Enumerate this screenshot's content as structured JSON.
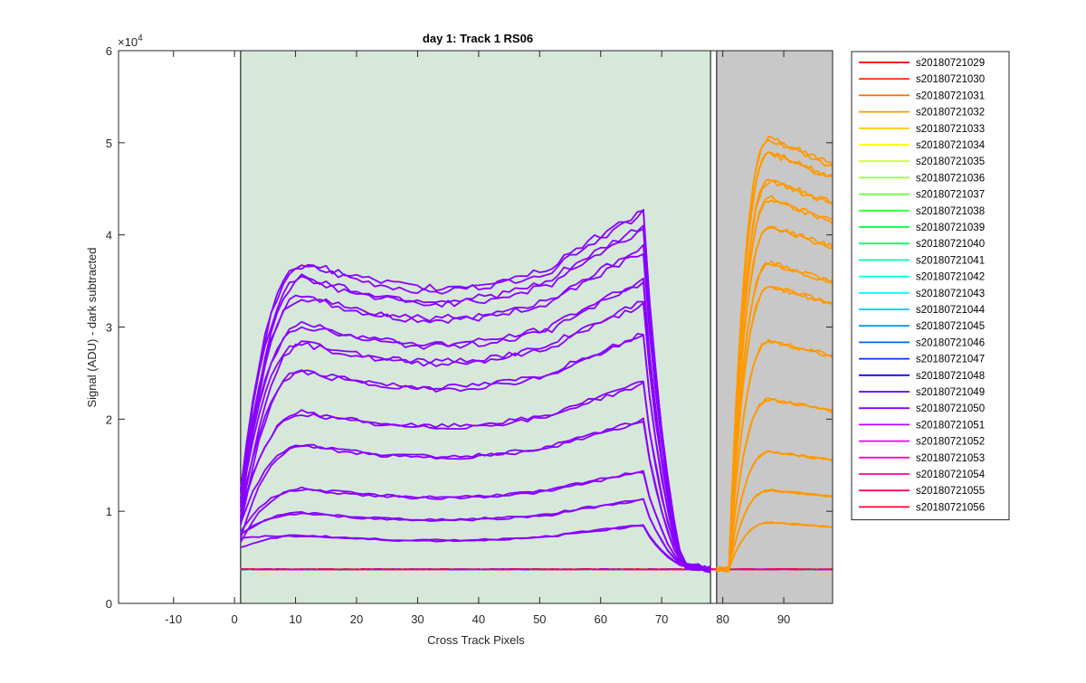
{
  "chart_data": {
    "type": "line",
    "title": "day 1: Track 1  RS06",
    "xlabel": "Cross Track Pixels",
    "ylabel": "Signal (ADU) - dark subtracted",
    "y_exponent_label": "×10",
    "y_exponent_power": "4",
    "xlim": [
      -19,
      98
    ],
    "ylim": [
      0,
      60000
    ],
    "x_ticks": [
      -10,
      0,
      10,
      20,
      30,
      40,
      50,
      60,
      70,
      80,
      90
    ],
    "y_ticks": [
      0,
      10000,
      20000,
      30000,
      40000,
      50000,
      60000
    ],
    "y_tick_labels": [
      "0",
      "1",
      "2",
      "3",
      "4",
      "5",
      "6"
    ],
    "grid": false,
    "legend_placement": "outside-right",
    "regions": [
      {
        "x0": 1,
        "x1": 78,
        "color": "#d6e8da"
      },
      {
        "x0": 79,
        "x1": 98,
        "color": "#c8c8c8"
      }
    ],
    "vertical_lines": [
      1,
      78,
      79
    ],
    "baseline": 3700,
    "purple_plateaus": [
      7300,
      9700,
      12300,
      17000,
      20500,
      25000,
      28000,
      30000,
      33000,
      35000,
      36500
    ],
    "orange_peaks": [
      8800,
      12300,
      16500,
      22200,
      28500,
      34500,
      37000,
      41000,
      44000,
      46000,
      49000,
      50500
    ],
    "series": [
      {
        "name": "s20180721029",
        "color": "#ff0000"
      },
      {
        "name": "s20180721030",
        "color": "#ff3300"
      },
      {
        "name": "s20180721031",
        "color": "#ff6600"
      },
      {
        "name": "s20180721032",
        "color": "#ff9900"
      },
      {
        "name": "s20180721033",
        "color": "#ffcc00"
      },
      {
        "name": "s20180721034",
        "color": "#ffff00"
      },
      {
        "name": "s20180721035",
        "color": "#ccff33"
      },
      {
        "name": "s20180721036",
        "color": "#99ff33"
      },
      {
        "name": "s20180721037",
        "color": "#66ff33"
      },
      {
        "name": "s20180721038",
        "color": "#33ff33"
      },
      {
        "name": "s20180721039",
        "color": "#00ff33"
      },
      {
        "name": "s20180721040",
        "color": "#00ff66"
      },
      {
        "name": "s20180721041",
        "color": "#00ffaa"
      },
      {
        "name": "s20180721042",
        "color": "#00ffdd"
      },
      {
        "name": "s20180721043",
        "color": "#00ffff"
      },
      {
        "name": "s20180721044",
        "color": "#00ccff"
      },
      {
        "name": "s20180721045",
        "color": "#0099ff"
      },
      {
        "name": "s20180721046",
        "color": "#0066ff"
      },
      {
        "name": "s20180721047",
        "color": "#0033ff"
      },
      {
        "name": "s20180721048",
        "color": "#1a00ff"
      },
      {
        "name": "s20180721049",
        "color": "#5500ff"
      },
      {
        "name": "s20180721050",
        "color": "#8800ff"
      },
      {
        "name": "s20180721051",
        "color": "#bb00ff"
      },
      {
        "name": "s20180721052",
        "color": "#ee00ff"
      },
      {
        "name": "s20180721053",
        "color": "#ff00cc"
      },
      {
        "name": "s20180721054",
        "color": "#ff0099"
      },
      {
        "name": "s20180721055",
        "color": "#ff0066"
      },
      {
        "name": "s20180721056",
        "color": "#ff0033"
      }
    ],
    "purple_color": "#8800ff",
    "orange_color": "#ff9900"
  }
}
